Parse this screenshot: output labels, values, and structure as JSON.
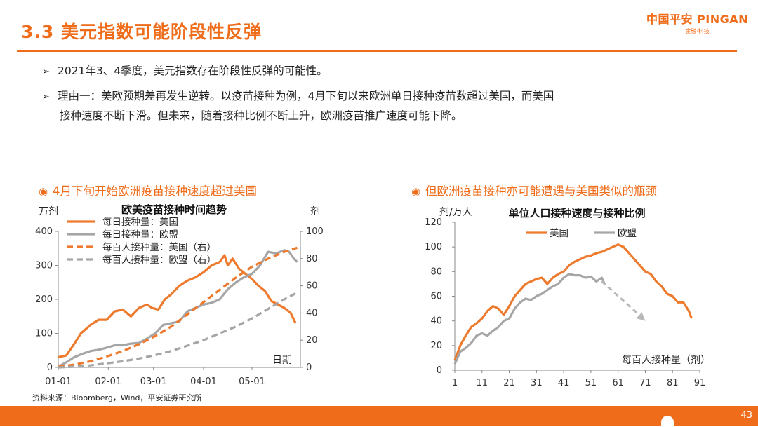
{
  "header": {
    "title": "3.3 美元指数可能阶段性反弹",
    "logo_main": "中国平安 PINGAN",
    "logo_sub": "金融·科技"
  },
  "bullets": [
    {
      "text": "2021年3、4季度，美元指数存在阶段性反弹的可能性。"
    },
    {
      "line1": "理由一：美欧预期差再发生逆转。以疫苗接种为例，4月下旬以来欧洲单日接种疫苗数超过美国，而美国",
      "line2": "接种速度不断下滑。但未来，随着接种比例不断上升，欧洲疫苗推广速度可能下降。"
    }
  ],
  "left_panel": {
    "subtitle": "4月下旬开始欧洲疫苗接种速度超过美国"
  },
  "right_panel": {
    "subtitle": "但欧洲疫苗接种亦可能遭遇与美国类似的瓶颈"
  },
  "source": "资料来源：Bloomberg，Wind，平安证券研究所",
  "footer": {
    "page": "43"
  },
  "colors": {
    "accent": "#ef6c1a",
    "us": "#ee7a2d",
    "eu": "#a6a6a6"
  },
  "chart_data": [
    {
      "type": "line",
      "title": "欧美疫苗接种时间趋势",
      "ylabel": "万剂",
      "y2label": "剂",
      "xlabel": "日期",
      "ylim": [
        0,
        400
      ],
      "y2lim": [
        0,
        100
      ],
      "yticks": [
        0,
        100,
        200,
        300,
        400
      ],
      "y2ticks": [
        0,
        20,
        40,
        60,
        80,
        100
      ],
      "xlim": [
        0,
        150
      ],
      "xticks": [
        {
          "x": 0,
          "label": "01-01"
        },
        {
          "x": 31,
          "label": "02-01"
        },
        {
          "x": 59,
          "label": "03-01"
        },
        {
          "x": 90,
          "label": "04-01"
        },
        {
          "x": 120,
          "label": "05-01"
        }
      ],
      "series": [
        {
          "name": "每日接种量：美国",
          "axis": "left",
          "style": "solid",
          "color": "#ee7a2d",
          "x": [
            0,
            5,
            10,
            14,
            20,
            25,
            30,
            35,
            40,
            45,
            50,
            55,
            58,
            62,
            66,
            70,
            75,
            80,
            85,
            90,
            95,
            100,
            103,
            105,
            108,
            112,
            116,
            120,
            124,
            128,
            132,
            136,
            140,
            144,
            147
          ],
          "y": [
            30,
            35,
            70,
            100,
            125,
            140,
            140,
            165,
            170,
            150,
            175,
            185,
            175,
            170,
            200,
            215,
            240,
            255,
            265,
            280,
            300,
            310,
            330,
            300,
            320,
            290,
            275,
            260,
            240,
            225,
            195,
            185,
            175,
            160,
            130
          ]
        },
        {
          "name": "每日接种量：欧盟",
          "axis": "left",
          "style": "solid",
          "color": "#a6a6a6",
          "x": [
            0,
            5,
            10,
            15,
            20,
            25,
            30,
            35,
            40,
            45,
            50,
            55,
            60,
            65,
            70,
            75,
            80,
            85,
            90,
            95,
            100,
            105,
            110,
            115,
            120,
            125,
            130,
            135,
            140,
            143,
            146,
            148
          ],
          "y": [
            2,
            15,
            30,
            40,
            48,
            52,
            58,
            65,
            65,
            70,
            72,
            85,
            100,
            125,
            130,
            135,
            165,
            175,
            185,
            190,
            200,
            230,
            250,
            265,
            275,
            300,
            340,
            335,
            345,
            340,
            320,
            310
          ]
        },
        {
          "name": "每百人接种量：美国（右）",
          "axis": "right",
          "style": "dashed",
          "color": "#ee7a2d",
          "x": [
            0,
            10,
            20,
            30,
            40,
            50,
            60,
            70,
            80,
            90,
            100,
            110,
            120,
            130,
            140,
            148
          ],
          "y": [
            0.5,
            2,
            4.5,
            8,
            12,
            17,
            23,
            30,
            39,
            48,
            57,
            66,
            74,
            80,
            85,
            88
          ]
        },
        {
          "name": "每百人接种量：欧盟（右）",
          "axis": "right",
          "style": "dashed",
          "color": "#a6a6a6",
          "x": [
            0,
            10,
            20,
            30,
            40,
            50,
            60,
            70,
            80,
            90,
            100,
            110,
            120,
            130,
            140,
            148
          ],
          "y": [
            0,
            0.5,
            1.5,
            3,
            4.5,
            6.5,
            9,
            12,
            16,
            20,
            25,
            30,
            36,
            43,
            50,
            55
          ]
        }
      ]
    },
    {
      "type": "line",
      "title": "单位人口接种速度与接种比例",
      "ylabel": "剂/万人",
      "xlabel": "每百人接种量（剂）",
      "ylim": [
        0,
        120
      ],
      "yticks": [
        0,
        20,
        40,
        60,
        80,
        100,
        120
      ],
      "xlim": [
        1,
        91
      ],
      "xticks": [
        1,
        11,
        21,
        31,
        41,
        51,
        61,
        71,
        81,
        91
      ],
      "annotation": {
        "type": "dashed-arrow",
        "from": [
          55,
          72
        ],
        "to": [
          71,
          40
        ]
      },
      "series": [
        {
          "name": "美国",
          "color": "#ee7a2d",
          "x": [
            1,
            3,
            5,
            7,
            9,
            11,
            13,
            15,
            17,
            19,
            21,
            23,
            25,
            27,
            29,
            31,
            33,
            35,
            37,
            39,
            41,
            43,
            45,
            47,
            49,
            51,
            53,
            55,
            57,
            59,
            61,
            63,
            65,
            67,
            69,
            71,
            73,
            75,
            77,
            79,
            81,
            83,
            85,
            87,
            88
          ],
          "y": [
            8,
            20,
            28,
            35,
            38,
            42,
            48,
            52,
            50,
            45,
            52,
            60,
            65,
            70,
            72,
            74,
            75,
            70,
            75,
            78,
            80,
            85,
            88,
            90,
            92,
            93,
            95,
            96,
            98,
            100,
            102,
            100,
            95,
            90,
            85,
            80,
            78,
            72,
            68,
            62,
            60,
            55,
            55,
            48,
            42
          ]
        },
        {
          "name": "欧盟",
          "color": "#a6a6a6",
          "x": [
            1,
            3,
            5,
            7,
            9,
            11,
            13,
            15,
            17,
            19,
            21,
            23,
            25,
            27,
            29,
            31,
            33,
            35,
            37,
            39,
            41,
            43,
            45,
            47,
            49,
            51,
            53,
            55,
            56
          ],
          "y": [
            5,
            15,
            18,
            22,
            28,
            30,
            28,
            32,
            35,
            40,
            42,
            50,
            55,
            58,
            57,
            60,
            62,
            65,
            68,
            70,
            75,
            78,
            77,
            77,
            75,
            76,
            72,
            75,
            70
          ]
        }
      ]
    }
  ]
}
